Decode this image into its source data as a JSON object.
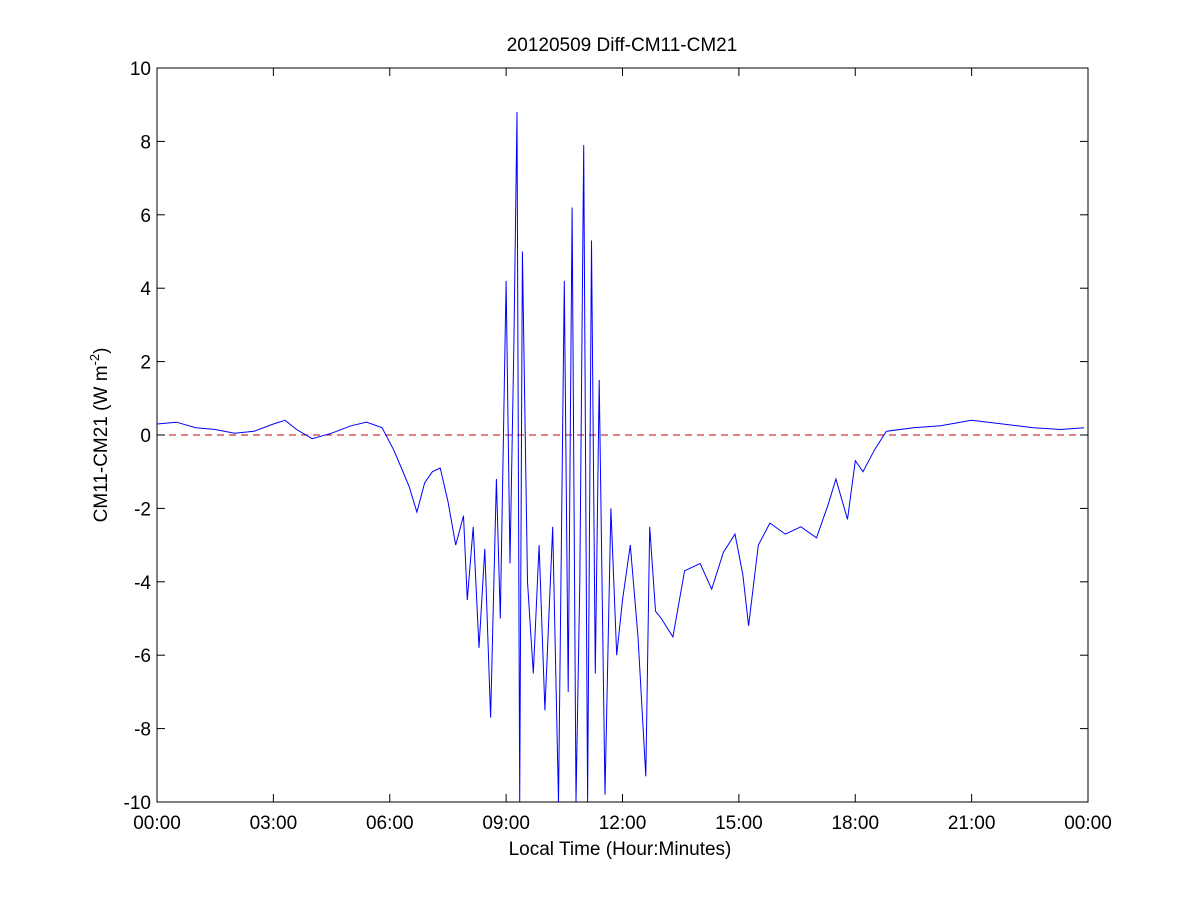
{
  "chart_data": {
    "type": "line",
    "title": "20120509 Diff-CM11-CM21",
    "xlabel": "Local Time (Hour:Minutes)",
    "ylabel": {
      "prefix": "CM11-CM21 (W m",
      "superscript": "-2",
      "suffix": ")"
    },
    "xlim": [
      0,
      24
    ],
    "ylim": [
      -10,
      10
    ],
    "x_ticks": [
      0,
      3,
      6,
      9,
      12,
      15,
      18,
      21,
      24
    ],
    "x_tick_labels": [
      "00:00",
      "03:00",
      "06:00",
      "09:00",
      "12:00",
      "15:00",
      "18:00",
      "21:00",
      "00:00"
    ],
    "y_ticks": [
      -10,
      -8,
      -6,
      -4,
      -2,
      0,
      2,
      4,
      6,
      8,
      10
    ],
    "y_tick_labels": [
      "-10",
      "-8",
      "-6",
      "-4",
      "-2",
      "0",
      "2",
      "4",
      "6",
      "8",
      "10"
    ],
    "grid": false,
    "reference_line": {
      "y": 0,
      "style": "dashed",
      "color": "#cc0000"
    },
    "series": [
      {
        "color": "#0000ff",
        "x": [
          0.0,
          0.5,
          1.0,
          1.5,
          2.0,
          2.5,
          3.0,
          3.3,
          3.6,
          4.0,
          4.5,
          5.0,
          5.4,
          5.8,
          6.1,
          6.3,
          6.5,
          6.7,
          6.9,
          7.1,
          7.3,
          7.5,
          7.7,
          7.9,
          8.0,
          8.15,
          8.3,
          8.45,
          8.6,
          8.75,
          8.85,
          9.0,
          9.1,
          9.2,
          9.28,
          9.35,
          9.42,
          9.55,
          9.7,
          9.85,
          10.0,
          10.2,
          10.35,
          10.5,
          10.6,
          10.7,
          10.8,
          10.9,
          11.0,
          11.1,
          11.2,
          11.3,
          11.4,
          11.55,
          11.7,
          11.85,
          12.0,
          12.2,
          12.4,
          12.6,
          12.7,
          12.85,
          13.0,
          13.3,
          13.6,
          14.0,
          14.3,
          14.6,
          14.9,
          15.1,
          15.25,
          15.5,
          15.8,
          16.2,
          16.6,
          17.0,
          17.3,
          17.5,
          17.8,
          18.0,
          18.2,
          18.5,
          18.8,
          19.5,
          20.2,
          21.0,
          21.8,
          22.6,
          23.3,
          23.9
        ],
        "y": [
          0.3,
          0.35,
          0.2,
          0.15,
          0.05,
          0.1,
          0.3,
          0.4,
          0.15,
          -0.1,
          0.05,
          0.25,
          0.35,
          0.2,
          -0.4,
          -0.9,
          -1.4,
          -2.1,
          -1.3,
          -1.0,
          -0.9,
          -1.8,
          -3.0,
          -2.2,
          -4.5,
          -2.5,
          -5.8,
          -3.1,
          -7.7,
          -1.2,
          -5.0,
          4.2,
          -3.5,
          2.5,
          8.8,
          -10.0,
          5.0,
          -4.0,
          -6.5,
          -3.0,
          -7.5,
          -2.5,
          -10.0,
          4.2,
          -7.0,
          6.2,
          -10.0,
          -4.0,
          7.9,
          -10.0,
          5.3,
          -6.5,
          1.5,
          -9.8,
          -2.0,
          -6.0,
          -4.5,
          -3.0,
          -5.5,
          -9.3,
          -2.5,
          -4.8,
          -5.0,
          -5.5,
          -3.7,
          -3.5,
          -4.2,
          -3.2,
          -2.7,
          -3.8,
          -5.2,
          -3.0,
          -2.4,
          -2.7,
          -2.5,
          -2.8,
          -1.9,
          -1.2,
          -2.3,
          -0.7,
          -1.0,
          -0.4,
          0.1,
          0.2,
          0.25,
          0.4,
          0.3,
          0.2,
          0.15,
          0.2
        ]
      }
    ]
  }
}
